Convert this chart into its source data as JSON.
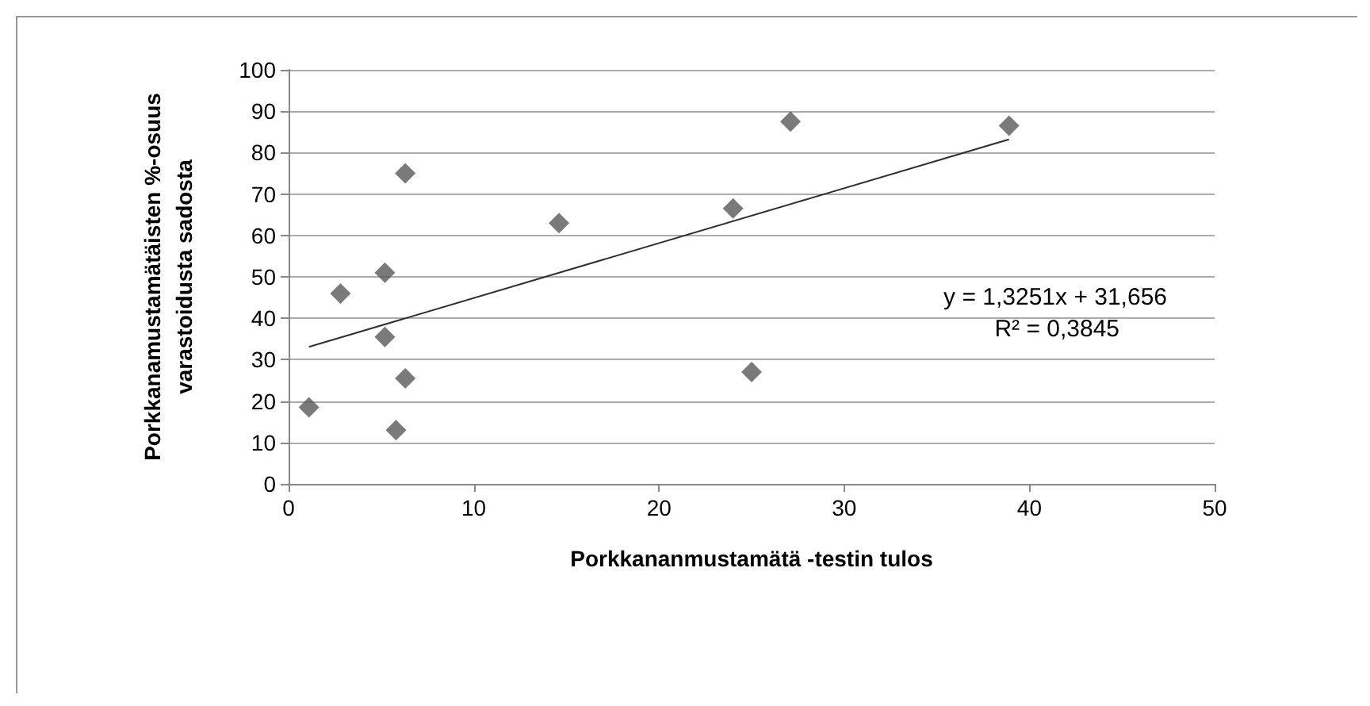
{
  "chart_data": {
    "type": "scatter",
    "xlabel": "Porkkananmustamätä -testin tulos",
    "ylabel": "Porkkanamustamätäisten %-osuus\nvarastoidusta sadosta",
    "series": [
      {
        "type": "scatter",
        "color": "#595959",
        "marker": "diamond",
        "x": [
          1.1,
          2.8,
          5.2,
          5.2,
          6.3,
          6.3,
          5.8,
          14.6,
          24,
          25,
          27.1,
          38.9
        ],
        "values": [
          18.5,
          46,
          51,
          35.5,
          75,
          25.5,
          13,
          63,
          66.5,
          27,
          87.5,
          86.5
        ]
      },
      {
        "type": "line",
        "color": "#303030",
        "marker": "none",
        "x": [
          1.1,
          38.9
        ],
        "values": [
          33.1,
          83.2
        ]
      }
    ],
    "annotations": [
      "y = 1,3251x + 31,656",
      "R² = 0,3845"
    ],
    "xlim": [
      0,
      50
    ],
    "xticks": [
      0,
      10,
      20,
      30,
      40,
      50
    ],
    "ylim": [
      0,
      100
    ],
    "yticks": [
      0,
      10,
      20,
      30,
      40,
      50,
      60,
      70,
      80,
      90,
      100
    ],
    "grid": "y"
  }
}
